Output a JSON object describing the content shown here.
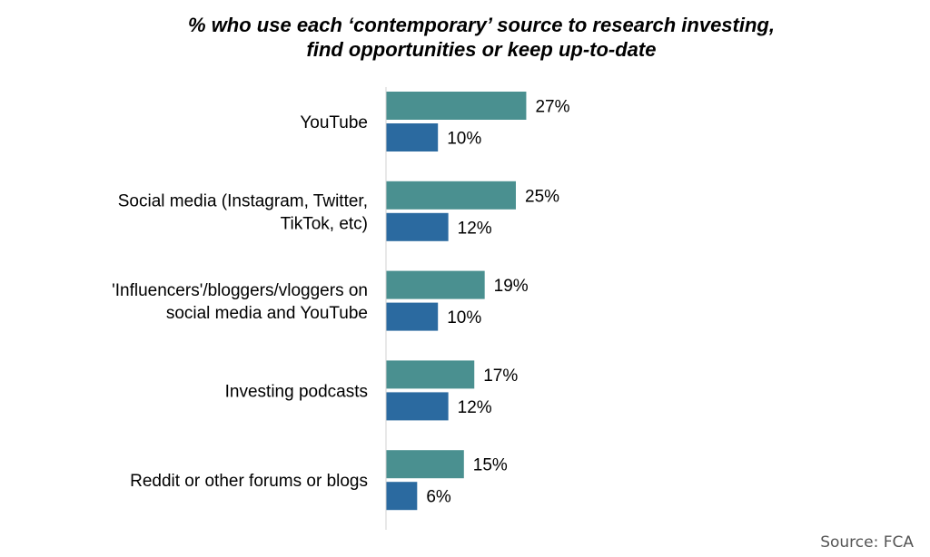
{
  "chart_data": {
    "type": "bar",
    "orientation": "horizontal",
    "title_lines": [
      "% who use each ‘contemporary’ source to research investing,",
      "find opportunities or keep up-to-date"
    ],
    "categories": [
      [
        "YouTube"
      ],
      [
        "Social media (Instagram, Twitter,",
        "TikTok, etc)"
      ],
      [
        "'Influencers'/bloggers/vloggers on",
        "social media and YouTube"
      ],
      [
        "Investing podcasts"
      ],
      [
        "Reddit or other forums or blogs"
      ]
    ],
    "series": [
      {
        "values": [
          27,
          25,
          19,
          17,
          15
        ],
        "color": "#4a9090"
      },
      {
        "values": [
          10,
          12,
          10,
          12,
          6
        ],
        "color": "#2b6aa0"
      }
    ],
    "value_suffix": "%",
    "xlim": [
      0,
      100
    ],
    "grid": false
  },
  "source": "Source: FCA"
}
